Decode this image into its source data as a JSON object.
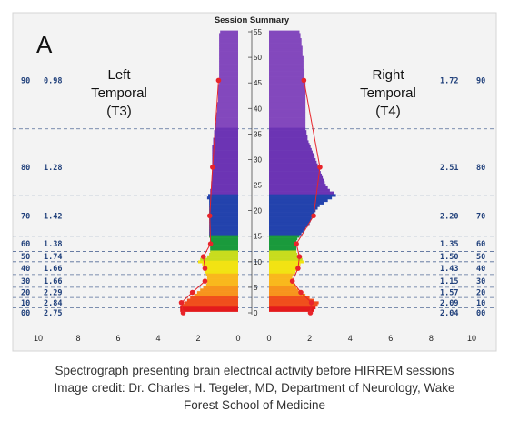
{
  "chart_data": {
    "type": "bar",
    "panel_letter": "A",
    "title": "Session Summary",
    "y_axis": {
      "ticks": [
        0,
        5,
        10,
        15,
        20,
        25,
        30,
        35,
        40,
        45,
        50,
        55
      ],
      "range": [
        0,
        55
      ]
    },
    "x_axis_left": {
      "ticks": [
        10,
        8,
        6,
        4,
        2,
        0
      ],
      "range": [
        10,
        0
      ]
    },
    "x_axis_right": {
      "ticks": [
        0,
        2,
        4,
        6,
        8,
        10
      ],
      "range": [
        0,
        10
      ]
    },
    "left_label": [
      "Left",
      "Temporal",
      "(T3)"
    ],
    "right_label": [
      "Right",
      "Temporal",
      "(T4)"
    ],
    "band_boundaries": [
      1,
      3,
      5,
      7.5,
      10,
      12,
      15,
      23,
      36
    ],
    "bands": [
      {
        "pct": "00",
        "left_value": "2.75",
        "right_value": "2.04",
        "y": 0
      },
      {
        "pct": "10",
        "left_value": "2.84",
        "right_value": "2.09",
        "y": 2
      },
      {
        "pct": "20",
        "left_value": "2.29",
        "right_value": "1.57",
        "y": 4
      },
      {
        "pct": "30",
        "left_value": "1.66",
        "right_value": "1.15",
        "y": 6.2
      },
      {
        "pct": "40",
        "left_value": "1.66",
        "right_value": "1.43",
        "y": 8.7
      },
      {
        "pct": "50",
        "left_value": "1.74",
        "right_value": "1.50",
        "y": 11
      },
      {
        "pct": "60",
        "left_value": "1.38",
        "right_value": "1.35",
        "y": 13.5
      },
      {
        "pct": "70",
        "left_value": "1.42",
        "right_value": "2.20",
        "y": 19
      },
      {
        "pct": "80",
        "left_value": "1.28",
        "right_value": "2.51",
        "y": 28.5
      },
      {
        "pct": "90",
        "left_value": "0.98",
        "right_value": "1.72",
        "y": 45.5
      }
    ],
    "left_series": [
      {
        "hz": 0.5,
        "v": 2.9
      },
      {
        "hz": 1,
        "v": 2.9
      },
      {
        "hz": 1.5,
        "v": 2.8
      },
      {
        "hz": 2,
        "v": 2.7
      },
      {
        "hz": 2.5,
        "v": 2.55
      },
      {
        "hz": 3,
        "v": 2.4
      },
      {
        "hz": 3.5,
        "v": 2.2
      },
      {
        "hz": 4,
        "v": 2.05
      },
      {
        "hz": 4.5,
        "v": 1.9
      },
      {
        "hz": 5,
        "v": 1.75
      },
      {
        "hz": 5.5,
        "v": 1.6
      },
      {
        "hz": 6,
        "v": 1.55
      },
      {
        "hz": 6.5,
        "v": 1.55
      },
      {
        "hz": 7,
        "v": 1.55
      },
      {
        "hz": 7.5,
        "v": 1.6
      },
      {
        "hz": 8,
        "v": 1.65
      },
      {
        "hz": 8.5,
        "v": 1.7
      },
      {
        "hz": 9,
        "v": 1.75
      },
      {
        "hz": 9.5,
        "v": 1.8
      },
      {
        "hz": 10,
        "v": 2.0
      },
      {
        "hz": 10.5,
        "v": 1.9
      },
      {
        "hz": 11,
        "v": 1.55
      },
      {
        "hz": 11.5,
        "v": 1.45
      },
      {
        "hz": 12,
        "v": 1.4
      },
      {
        "hz": 12.5,
        "v": 1.4
      },
      {
        "hz": 13,
        "v": 1.4
      },
      {
        "hz": 13.5,
        "v": 1.4
      },
      {
        "hz": 14,
        "v": 1.4
      },
      {
        "hz": 14.5,
        "v": 1.4
      },
      {
        "hz": 15,
        "v": 1.45
      },
      {
        "hz": 15.5,
        "v": 1.45
      },
      {
        "hz": 16,
        "v": 1.45
      },
      {
        "hz": 16.5,
        "v": 1.45
      },
      {
        "hz": 17,
        "v": 1.45
      },
      {
        "hz": 17.5,
        "v": 1.45
      },
      {
        "hz": 18,
        "v": 1.45
      },
      {
        "hz": 18.5,
        "v": 1.45
      },
      {
        "hz": 19,
        "v": 1.45
      },
      {
        "hz": 19.5,
        "v": 1.45
      },
      {
        "hz": 20,
        "v": 1.45
      },
      {
        "hz": 20.5,
        "v": 1.45
      },
      {
        "hz": 21,
        "v": 1.45
      },
      {
        "hz": 21.5,
        "v": 1.45
      },
      {
        "hz": 22,
        "v": 1.45
      },
      {
        "hz": 22.5,
        "v": 1.55
      },
      {
        "hz": 23,
        "v": 1.5
      },
      {
        "hz": 23.5,
        "v": 1.4
      },
      {
        "hz": 24,
        "v": 1.4
      },
      {
        "hz": 24.5,
        "v": 1.35
      },
      {
        "hz": 25,
        "v": 1.35
      },
      {
        "hz": 25.5,
        "v": 1.35
      },
      {
        "hz": 26,
        "v": 1.3
      },
      {
        "hz": 26.5,
        "v": 1.3
      },
      {
        "hz": 27,
        "v": 1.3
      },
      {
        "hz": 27.5,
        "v": 1.3
      },
      {
        "hz": 28,
        "v": 1.3
      },
      {
        "hz": 28.5,
        "v": 1.3
      },
      {
        "hz": 29,
        "v": 1.3
      },
      {
        "hz": 29.5,
        "v": 1.3
      },
      {
        "hz": 30,
        "v": 1.3
      },
      {
        "hz": 30.5,
        "v": 1.3
      },
      {
        "hz": 31,
        "v": 1.3
      },
      {
        "hz": 31.5,
        "v": 1.3
      },
      {
        "hz": 32,
        "v": 1.3
      },
      {
        "hz": 32.5,
        "v": 1.3
      },
      {
        "hz": 33,
        "v": 1.25
      },
      {
        "hz": 33.5,
        "v": 1.25
      },
      {
        "hz": 34,
        "v": 1.25
      },
      {
        "hz": 34.5,
        "v": 1.2
      },
      {
        "hz": 35,
        "v": 1.2
      },
      {
        "hz": 35.5,
        "v": 1.2
      },
      {
        "hz": 36,
        "v": 1.15
      },
      {
        "hz": 36.5,
        "v": 1.15
      },
      {
        "hz": 37,
        "v": 1.15
      },
      {
        "hz": 37.5,
        "v": 1.1
      },
      {
        "hz": 38,
        "v": 1.1
      },
      {
        "hz": 38.5,
        "v": 1.1
      },
      {
        "hz": 39,
        "v": 1.1
      },
      {
        "hz": 39.5,
        "v": 1.05
      },
      {
        "hz": 40,
        "v": 1.05
      },
      {
        "hz": 40.5,
        "v": 1.05
      },
      {
        "hz": 41,
        "v": 1.05
      },
      {
        "hz": 41.5,
        "v": 1.0
      },
      {
        "hz": 42,
        "v": 1.0
      },
      {
        "hz": 42.5,
        "v": 1.0
      },
      {
        "hz": 43,
        "v": 1.0
      },
      {
        "hz": 43.5,
        "v": 1.0
      },
      {
        "hz": 44,
        "v": 1.0
      },
      {
        "hz": 44.5,
        "v": 1.0
      },
      {
        "hz": 45,
        "v": 0.95
      },
      {
        "hz": 45.5,
        "v": 0.95
      },
      {
        "hz": 46,
        "v": 0.95
      },
      {
        "hz": 46.5,
        "v": 0.95
      },
      {
        "hz": 47,
        "v": 0.95
      },
      {
        "hz": 47.5,
        "v": 0.95
      },
      {
        "hz": 48,
        "v": 0.95
      },
      {
        "hz": 48.5,
        "v": 0.95
      },
      {
        "hz": 49,
        "v": 0.95
      },
      {
        "hz": 49.5,
        "v": 0.95
      },
      {
        "hz": 50,
        "v": 0.95
      },
      {
        "hz": 50.5,
        "v": 0.95
      },
      {
        "hz": 51,
        "v": 0.95
      },
      {
        "hz": 51.5,
        "v": 0.95
      },
      {
        "hz": 52,
        "v": 0.95
      },
      {
        "hz": 52.5,
        "v": 0.95
      },
      {
        "hz": 53,
        "v": 0.95
      },
      {
        "hz": 53.5,
        "v": 0.95
      },
      {
        "hz": 54,
        "v": 0.95
      },
      {
        "hz": 54.5,
        "v": 0.95
      },
      {
        "hz": 55,
        "v": 0.9
      }
    ],
    "right_series": [
      {
        "hz": 0.5,
        "v": 2.2
      },
      {
        "hz": 1,
        "v": 2.3
      },
      {
        "hz": 1.5,
        "v": 2.4
      },
      {
        "hz": 2,
        "v": 2.45
      },
      {
        "hz": 2.5,
        "v": 2.2
      },
      {
        "hz": 3,
        "v": 2.0
      },
      {
        "hz": 3.5,
        "v": 1.8
      },
      {
        "hz": 4,
        "v": 1.6
      },
      {
        "hz": 4.5,
        "v": 1.45
      },
      {
        "hz": 5,
        "v": 1.35
      },
      {
        "hz": 5.5,
        "v": 1.3
      },
      {
        "hz": 6,
        "v": 1.2
      },
      {
        "hz": 6.5,
        "v": 1.15
      },
      {
        "hz": 7,
        "v": 1.15
      },
      {
        "hz": 7.5,
        "v": 1.2
      },
      {
        "hz": 8,
        "v": 1.3
      },
      {
        "hz": 8.5,
        "v": 1.45
      },
      {
        "hz": 9,
        "v": 1.5
      },
      {
        "hz": 9.5,
        "v": 1.55
      },
      {
        "hz": 10,
        "v": 1.7
      },
      {
        "hz": 10.5,
        "v": 1.65
      },
      {
        "hz": 11,
        "v": 1.5
      },
      {
        "hz": 11.5,
        "v": 1.4
      },
      {
        "hz": 12,
        "v": 1.35
      },
      {
        "hz": 12.5,
        "v": 1.35
      },
      {
        "hz": 13,
        "v": 1.35
      },
      {
        "hz": 13.5,
        "v": 1.35
      },
      {
        "hz": 14,
        "v": 1.35
      },
      {
        "hz": 14.5,
        "v": 1.4
      },
      {
        "hz": 15,
        "v": 1.5
      },
      {
        "hz": 15.5,
        "v": 1.6
      },
      {
        "hz": 16,
        "v": 1.7
      },
      {
        "hz": 16.5,
        "v": 1.8
      },
      {
        "hz": 17,
        "v": 1.9
      },
      {
        "hz": 17.5,
        "v": 2.0
      },
      {
        "hz": 18,
        "v": 2.05
      },
      {
        "hz": 18.5,
        "v": 2.1
      },
      {
        "hz": 19,
        "v": 2.15
      },
      {
        "hz": 19.5,
        "v": 2.25
      },
      {
        "hz": 20,
        "v": 2.3
      },
      {
        "hz": 20.5,
        "v": 2.4
      },
      {
        "hz": 21,
        "v": 2.5
      },
      {
        "hz": 21.5,
        "v": 2.7
      },
      {
        "hz": 22,
        "v": 2.9
      },
      {
        "hz": 22.5,
        "v": 3.1
      },
      {
        "hz": 23,
        "v": 3.3
      },
      {
        "hz": 23.5,
        "v": 3.2
      },
      {
        "hz": 24,
        "v": 3.0
      },
      {
        "hz": 24.5,
        "v": 2.9
      },
      {
        "hz": 25,
        "v": 2.8
      },
      {
        "hz": 25.5,
        "v": 2.75
      },
      {
        "hz": 26,
        "v": 2.7
      },
      {
        "hz": 26.5,
        "v": 2.65
      },
      {
        "hz": 27,
        "v": 2.6
      },
      {
        "hz": 27.5,
        "v": 2.55
      },
      {
        "hz": 28,
        "v": 2.5
      },
      {
        "hz": 28.5,
        "v": 2.45
      },
      {
        "hz": 29,
        "v": 2.4
      },
      {
        "hz": 29.5,
        "v": 2.35
      },
      {
        "hz": 30,
        "v": 2.3
      },
      {
        "hz": 30.5,
        "v": 2.25
      },
      {
        "hz": 31,
        "v": 2.2
      },
      {
        "hz": 31.5,
        "v": 2.15
      },
      {
        "hz": 32,
        "v": 2.1
      },
      {
        "hz": 32.5,
        "v": 2.05
      },
      {
        "hz": 33,
        "v": 2.0
      },
      {
        "hz": 33.5,
        "v": 1.95
      },
      {
        "hz": 34,
        "v": 1.9
      },
      {
        "hz": 34.5,
        "v": 1.9
      },
      {
        "hz": 35,
        "v": 1.85
      },
      {
        "hz": 35.5,
        "v": 1.85
      },
      {
        "hz": 36,
        "v": 1.8
      },
      {
        "hz": 36.5,
        "v": 1.8
      },
      {
        "hz": 37,
        "v": 1.8
      },
      {
        "hz": 37.5,
        "v": 1.8
      },
      {
        "hz": 38,
        "v": 1.8
      },
      {
        "hz": 38.5,
        "v": 1.8
      },
      {
        "hz": 39,
        "v": 1.8
      },
      {
        "hz": 39.5,
        "v": 1.8
      },
      {
        "hz": 40,
        "v": 1.8
      },
      {
        "hz": 40.5,
        "v": 1.8
      },
      {
        "hz": 41,
        "v": 1.8
      },
      {
        "hz": 41.5,
        "v": 1.8
      },
      {
        "hz": 42,
        "v": 1.8
      },
      {
        "hz": 42.5,
        "v": 1.8
      },
      {
        "hz": 43,
        "v": 1.8
      },
      {
        "hz": 43.5,
        "v": 1.8
      },
      {
        "hz": 44,
        "v": 1.8
      },
      {
        "hz": 44.5,
        "v": 1.8
      },
      {
        "hz": 45,
        "v": 1.8
      },
      {
        "hz": 45.5,
        "v": 1.75
      },
      {
        "hz": 46,
        "v": 1.75
      },
      {
        "hz": 46.5,
        "v": 1.75
      },
      {
        "hz": 47,
        "v": 1.75
      },
      {
        "hz": 47.5,
        "v": 1.75
      },
      {
        "hz": 48,
        "v": 1.7
      },
      {
        "hz": 48.5,
        "v": 1.7
      },
      {
        "hz": 49,
        "v": 1.7
      },
      {
        "hz": 49.5,
        "v": 1.7
      },
      {
        "hz": 50,
        "v": 1.7
      },
      {
        "hz": 50.5,
        "v": 1.65
      },
      {
        "hz": 51,
        "v": 1.65
      },
      {
        "hz": 51.5,
        "v": 1.65
      },
      {
        "hz": 52,
        "v": 1.65
      },
      {
        "hz": 52.5,
        "v": 1.6
      },
      {
        "hz": 53,
        "v": 1.6
      },
      {
        "hz": 53.5,
        "v": 1.6
      },
      {
        "hz": 54,
        "v": 1.55
      },
      {
        "hz": 54.5,
        "v": 1.55
      },
      {
        "hz": 55,
        "v": 1.5
      }
    ],
    "colors": {
      "background": "#f3f3f3",
      "frame": "#cfcfcf",
      "band_line": "#1f3f7a",
      "label_text": "#1f3f7a",
      "marker": "#e8242a",
      "marker_line": "#e8242a",
      "band_colors": [
        "#e31a1c",
        "#f04e1c",
        "#f7941d",
        "#f9b81d",
        "#f2e313",
        "#c8dc1e",
        "#1a9a3c",
        "#2343ad",
        "#6c34b4",
        "#8348bd"
      ]
    }
  },
  "caption": {
    "line1": "Spectrograph presenting brain electrical activity before HIRREM sessions",
    "line2": "Image credit: Dr. Charles H. Tegeler, MD, Department of Neurology, Wake",
    "line3": "Forest School of Medicine"
  }
}
